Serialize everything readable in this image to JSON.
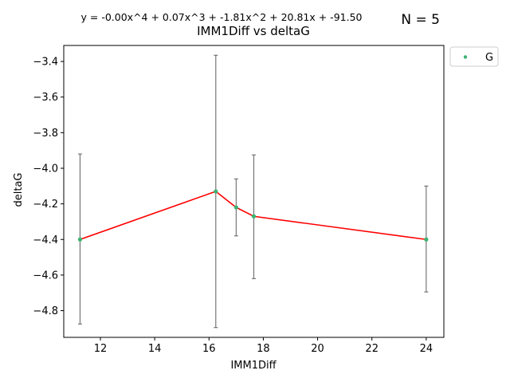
{
  "chart_data": {
    "type": "scatter",
    "title": "IMM1Diff vs deltaG",
    "subtitle": "y = -0.00x^4 + 0.07x^3 + -1.81x^2 + 20.81x + -91.50",
    "annotation": "N = 5",
    "xlabel": "IMM1Diff",
    "ylabel": "deltaG",
    "xlim": [
      10.65,
      24.65
    ],
    "ylim": [
      -4.95,
      -3.31
    ],
    "xticks": [
      12,
      14,
      16,
      18,
      20,
      22,
      24
    ],
    "yticks": [
      -4.8,
      -4.6,
      -4.4,
      -4.2,
      -4.0,
      -3.8,
      -3.6,
      -3.4
    ],
    "grid": false,
    "legend_position": "outside-top-right",
    "series": [
      {
        "name": "G",
        "color": "#3cb371",
        "points": [
          {
            "x": 11.25,
            "y": -4.4,
            "err_low": -4.875,
            "err_high": -3.92
          },
          {
            "x": 16.25,
            "y": -4.13,
            "err_low": -4.895,
            "err_high": -3.365
          },
          {
            "x": 17.0,
            "y": -4.22,
            "err_low": -4.38,
            "err_high": -4.06
          },
          {
            "x": 17.65,
            "y": -4.27,
            "err_low": -4.62,
            "err_high": -3.925
          },
          {
            "x": 24.0,
            "y": -4.4,
            "err_low": -4.695,
            "err_high": -4.1
          }
        ]
      }
    ],
    "fit_line": {
      "color": "#ff0000",
      "x": [
        11.25,
        16.25,
        17.0,
        17.65,
        24.0
      ],
      "y": [
        -4.4,
        -4.13,
        -4.22,
        -4.27,
        -4.4
      ]
    },
    "errorbar_color": "#6b6b6b"
  }
}
